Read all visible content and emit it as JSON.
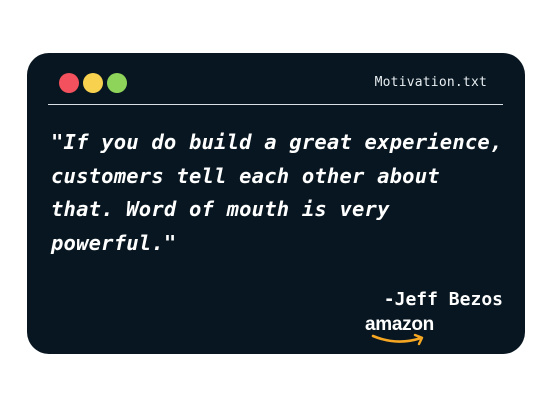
{
  "window": {
    "filename": "Motivation.txt",
    "controls": [
      {
        "name": "close",
        "color": "#f2515d"
      },
      {
        "name": "minimize",
        "color": "#f8d24f"
      },
      {
        "name": "maximize",
        "color": "#8fd45a"
      }
    ]
  },
  "content": {
    "quote": "\"If you do build a great experience, customers tell each other about that. Word of mouth is very powerful.\"",
    "author": "-Jeff Bezos",
    "logo_text": "amazon",
    "logo_smile_color": "#f5a623"
  },
  "colors": {
    "background": "#071620",
    "text": "#ffffff"
  }
}
